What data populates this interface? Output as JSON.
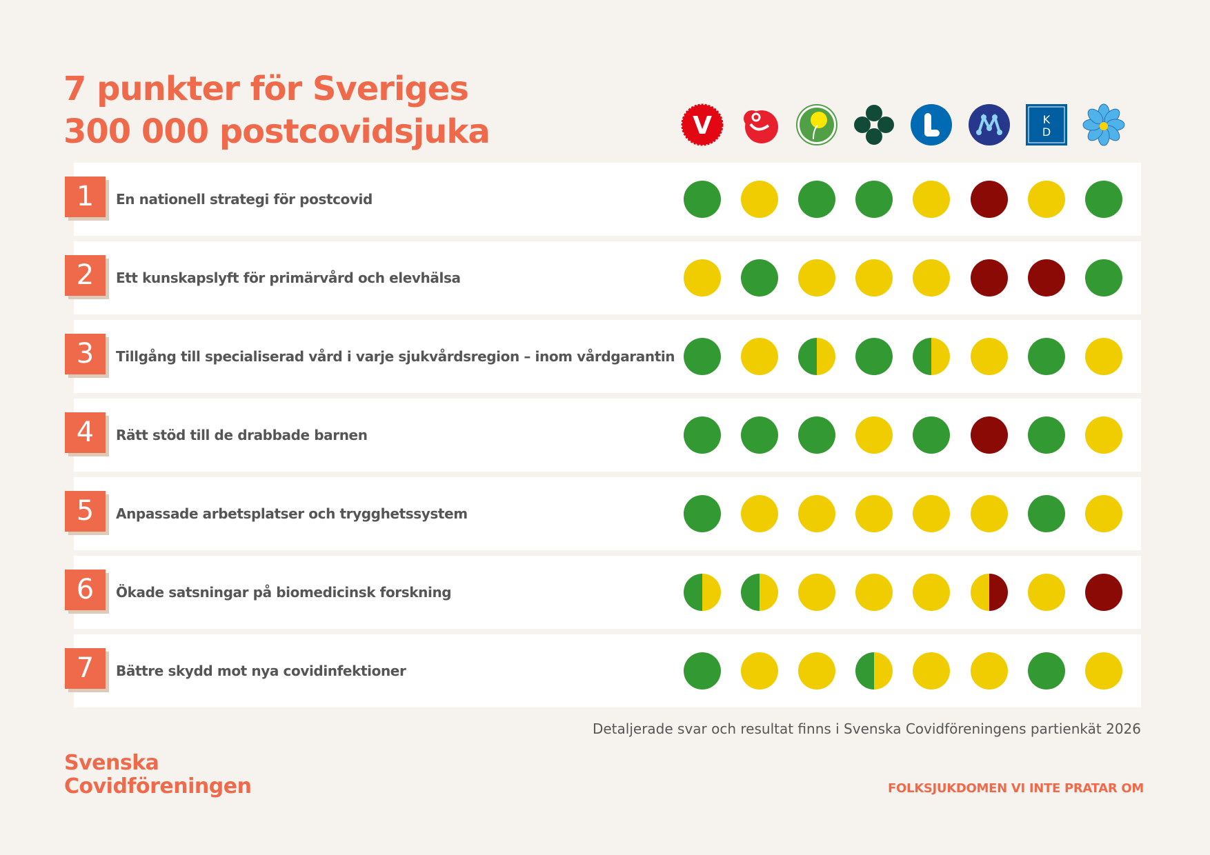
{
  "title": {
    "line1": "7 punkter för Sveriges",
    "line2": "300 000 postcovidsjuka"
  },
  "colors": {
    "green": "#339933",
    "yellow": "#f0cd00",
    "red": "#8c0a06",
    "accent": "#ee6a4b"
  },
  "score_legend": {
    "G": "green",
    "Y": "yellow",
    "R": "red",
    "GY": "half green / half yellow",
    "YR": "half yellow / half red"
  },
  "parties": [
    {
      "icon": "vansterpartiet-logo",
      "letter": "V"
    },
    {
      "icon": "socialdemokraterna-rose-logo",
      "letter": ""
    },
    {
      "icon": "miljopartiet-dandelion-logo",
      "letter": ""
    },
    {
      "icon": "centerpartiet-clover-logo",
      "letter": ""
    },
    {
      "icon": "liberalerna-logo",
      "letter": "L"
    },
    {
      "icon": "moderaterna-logo",
      "letter": "M"
    },
    {
      "icon": "kristdemokraterna-logo",
      "letter": "KD"
    },
    {
      "icon": "sverigedemokraterna-flower-logo",
      "letter": ""
    }
  ],
  "points": [
    {
      "number": "1",
      "label": "En nationell strategi för postcovid",
      "scores": [
        "G",
        "Y",
        "G",
        "G",
        "Y",
        "R",
        "Y",
        "G"
      ]
    },
    {
      "number": "2",
      "label": "Ett kunskapslyft för primärvård och elevhälsa",
      "scores": [
        "Y",
        "G",
        "Y",
        "Y",
        "Y",
        "R",
        "R",
        "G"
      ]
    },
    {
      "number": "3",
      "label": "Tillgång till specialiserad vård i varje sjukvårdsregion – inom vårdgarantin",
      "scores": [
        "G",
        "Y",
        "GY",
        "G",
        "GY",
        "Y",
        "G",
        "Y"
      ]
    },
    {
      "number": "4",
      "label": "Rätt stöd till de drabbade barnen",
      "scores": [
        "G",
        "G",
        "G",
        "Y",
        "G",
        "R",
        "G",
        "Y"
      ]
    },
    {
      "number": "5",
      "label": "Anpassade arbetsplatser och trygghetssystem",
      "scores": [
        "G",
        "Y",
        "Y",
        "Y",
        "Y",
        "Y",
        "G",
        "Y"
      ]
    },
    {
      "number": "6",
      "label": "Ökade satsningar på biomedicinsk forskning",
      "scores": [
        "GY",
        "GY",
        "Y",
        "Y",
        "Y",
        "YR",
        "Y",
        "R"
      ]
    },
    {
      "number": "7",
      "label": "Bättre skydd mot nya covidinfektioner",
      "scores": [
        "G",
        "Y",
        "Y",
        "GY",
        "Y",
        "Y",
        "G",
        "Y"
      ]
    }
  ],
  "footer": {
    "note": "Detaljerade svar och resultat finns i Svenska Covidföreningens partienkät 2026",
    "brand_line1": "Svenska",
    "brand_line2": "Covidföreningen",
    "tagline": "FOLKSJUKDOMEN VI INTE PRATAR OM"
  }
}
